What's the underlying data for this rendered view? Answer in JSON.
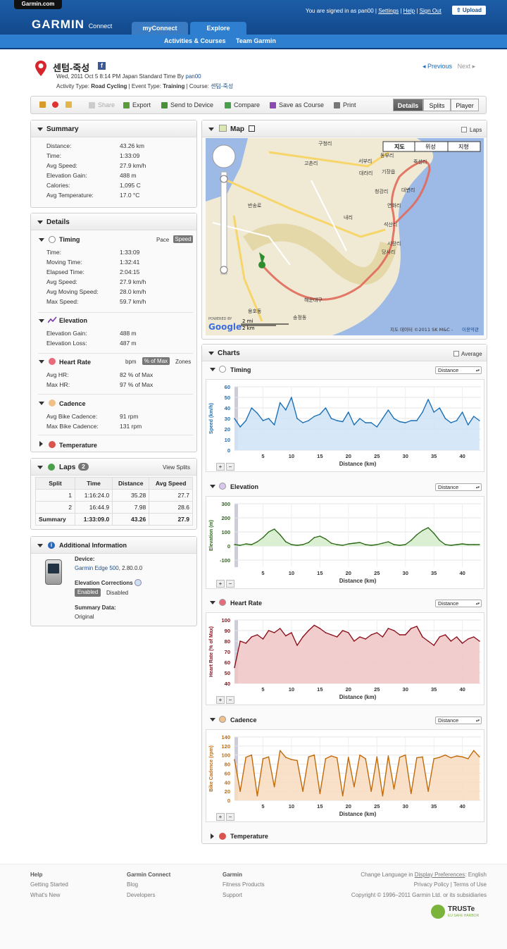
{
  "header": {
    "brand_tab": "Garmin.com",
    "logo": "GARMIN",
    "logo_sub": "Connect",
    "tabs": [
      "myConnect",
      "Explore"
    ],
    "subnav": [
      "Activities & Courses",
      "Team Garmin"
    ],
    "signed_in": "You are signed in as pan00 |",
    "settings": "Settings",
    "help": "Help",
    "signout": "Sign Out",
    "upload": "Upload"
  },
  "activity": {
    "title": "센텀-죽성",
    "date_line": "Wed, 2011 Oct 5 8:14 PM Japan Standard Time By",
    "user": "pan00",
    "type_label": "Activity Type:",
    "type": "Road Cycling",
    "event_label": "| Event Type:",
    "event": "Training",
    "course_label": "| Course:",
    "course": "센텀-죽성",
    "previous": "Previous",
    "next": "Next"
  },
  "toolbar": {
    "share": "Share",
    "export": "Export",
    "send": "Send to Device",
    "compare": "Compare",
    "save_course": "Save as Course",
    "print": "Print",
    "views": [
      "Details",
      "Splits",
      "Player"
    ]
  },
  "summary": {
    "title": "Summary",
    "rows": [
      [
        "Distance:",
        "43.26 km"
      ],
      [
        "Time:",
        "1:33:09"
      ],
      [
        "Avg Speed:",
        "27.9 km/h"
      ],
      [
        "Elevation Gain:",
        "488 m"
      ],
      [
        "Calories:",
        "1,095 C"
      ],
      [
        "Avg Temperature:",
        "17.0 °C"
      ]
    ]
  },
  "details": {
    "title": "Details",
    "timing": {
      "title": "Timing",
      "pace": "Pace",
      "speed": "Speed",
      "rows": [
        [
          "Time:",
          "1:33:09"
        ],
        [
          "Moving Time:",
          "1:32:41"
        ],
        [
          "Elapsed Time:",
          "2:04:15"
        ],
        [
          "Avg Speed:",
          "27.9 km/h"
        ],
        [
          "Avg Moving Speed:",
          "28.0 km/h"
        ],
        [
          "Max Speed:",
          "59.7 km/h"
        ]
      ]
    },
    "elevation": {
      "title": "Elevation",
      "rows": [
        [
          "Elevation Gain:",
          "488 m"
        ],
        [
          "Elevation Loss:",
          "487 m"
        ]
      ]
    },
    "heart": {
      "title": "Heart Rate",
      "bpm": "bpm",
      "pct": "% of Max",
      "zones": "Zones",
      "rows": [
        [
          "Avg HR:",
          "82 % of Max"
        ],
        [
          "Max HR:",
          "97 % of Max"
        ]
      ]
    },
    "cadence": {
      "title": "Cadence",
      "rows": [
        [
          "Avg Bike Cadence:",
          "91 rpm"
        ],
        [
          "Max Bike Cadence:",
          "131 rpm"
        ]
      ]
    },
    "temperature": {
      "title": "Temperature"
    }
  },
  "laps": {
    "title": "Laps",
    "count": "2",
    "view_splits": "View Splits",
    "headers": [
      "Split",
      "Time",
      "Distance",
      "Avg Speed"
    ],
    "rows": [
      [
        "1",
        "1:16:24.0",
        "35.28",
        "27.7"
      ],
      [
        "2",
        "16:44.9",
        "7.98",
        "28.6"
      ],
      [
        "Summary",
        "1:33:09.0",
        "43.26",
        "27.9"
      ]
    ]
  },
  "info": {
    "title": "Additional Information",
    "device_label": "Device:",
    "device": "Garmin Edge 500",
    "device_ver": ", 2.80.0.0",
    "elev_corr": "Elevation Corrections",
    "enabled": "Enabled",
    "disabled": "Disabled",
    "summary_data": "Summary Data:",
    "original": "Original"
  },
  "map": {
    "title": "Map",
    "laps": "Laps",
    "modes": [
      "지도",
      "위성",
      "지형"
    ],
    "scale_mi": "2 mi",
    "scale_km": "2 km",
    "copyright": "지도 데이터 ©2011 SK M&C -",
    "terms": "이용약관",
    "powered": "POWERED BY",
    "google": "Google",
    "places": [
      "구청리",
      "고촌리",
      "서부리",
      "동부리",
      "기장읍",
      "죽성리",
      "대라리",
      "청강리",
      "대변리",
      "연화리",
      "내리",
      "석산리",
      "시랑리",
      "당사리",
      "해운대구",
      "송정동",
      "용호동",
      "반송로"
    ]
  },
  "charts": {
    "title": "Charts",
    "average": "Average",
    "dropdown": "Distance",
    "xlabel": "Distance (km)",
    "temperature": "Temperature"
  },
  "chart_data": [
    {
      "type": "area",
      "title": "Timing",
      "ylabel": "Speed (km/h)",
      "xlabel": "Distance (km)",
      "ylim": [
        0,
        60
      ],
      "yticks": [
        0,
        10,
        20,
        30,
        40,
        50,
        60
      ],
      "xticks": [
        5,
        10,
        15,
        20,
        25,
        30,
        35,
        40
      ],
      "color": "#1b6fb5",
      "fill": "#cfe4f6",
      "x": [
        0,
        1,
        2,
        3,
        4,
        5,
        6,
        7,
        8,
        9,
        10,
        11,
        12,
        13,
        14,
        15,
        16,
        17,
        18,
        19,
        20,
        21,
        22,
        23,
        24,
        25,
        26,
        27,
        28,
        29,
        30,
        31,
        32,
        33,
        34,
        35,
        36,
        37,
        38,
        39,
        40,
        41,
        42,
        43
      ],
      "values": [
        30,
        22,
        28,
        40,
        35,
        28,
        30,
        24,
        45,
        38,
        50,
        30,
        26,
        28,
        32,
        34,
        40,
        30,
        28,
        27,
        36,
        24,
        30,
        26,
        26,
        22,
        30,
        38,
        30,
        27,
        26,
        28,
        28,
        36,
        48,
        36,
        40,
        30,
        26,
        28,
        36,
        24,
        32,
        28
      ]
    },
    {
      "type": "area",
      "title": "Elevation",
      "ylabel": "Elevation (m)",
      "xlabel": "Distance (km)",
      "ylim": [
        -150,
        300
      ],
      "yticks": [
        -100,
        0,
        100,
        200,
        300
      ],
      "xticks": [
        5,
        10,
        15,
        20,
        25,
        30,
        35,
        40
      ],
      "color": "#2d6a19",
      "fill": "#d5eccb",
      "x": [
        0,
        1,
        2,
        3,
        4,
        5,
        6,
        7,
        8,
        9,
        10,
        11,
        12,
        13,
        14,
        15,
        16,
        17,
        18,
        19,
        20,
        21,
        22,
        23,
        24,
        25,
        26,
        27,
        28,
        29,
        30,
        31,
        32,
        33,
        34,
        35,
        36,
        37,
        38,
        39,
        40,
        41,
        42,
        43
      ],
      "values": [
        10,
        5,
        15,
        10,
        30,
        60,
        100,
        120,
        80,
        30,
        10,
        5,
        10,
        25,
        60,
        70,
        50,
        20,
        10,
        5,
        15,
        20,
        25,
        10,
        5,
        10,
        20,
        30,
        10,
        5,
        10,
        40,
        80,
        110,
        130,
        90,
        40,
        10,
        5,
        10,
        15,
        10,
        10,
        10
      ]
    },
    {
      "type": "area",
      "title": "Heart Rate",
      "ylabel": "Heart Rate (% of Max)",
      "xlabel": "Distance (km)",
      "ylim": [
        40,
        100
      ],
      "yticks": [
        40,
        50,
        60,
        70,
        80,
        90,
        100
      ],
      "xticks": [
        5,
        10,
        15,
        20,
        25,
        30,
        35,
        40
      ],
      "color": "#8b0f1a",
      "fill": "#f0c4c6",
      "x": [
        0,
        1,
        2,
        3,
        4,
        5,
        6,
        7,
        8,
        9,
        10,
        11,
        12,
        13,
        14,
        15,
        16,
        17,
        18,
        19,
        20,
        21,
        22,
        23,
        24,
        25,
        26,
        27,
        28,
        29,
        30,
        31,
        32,
        33,
        34,
        35,
        36,
        37,
        38,
        39,
        40,
        41,
        42,
        43
      ],
      "values": [
        55,
        80,
        78,
        84,
        86,
        82,
        90,
        88,
        92,
        85,
        88,
        76,
        84,
        90,
        95,
        92,
        88,
        86,
        84,
        90,
        88,
        80,
        84,
        82,
        86,
        88,
        84,
        92,
        90,
        86,
        86,
        92,
        94,
        84,
        80,
        76,
        84,
        86,
        80,
        84,
        78,
        82,
        84,
        80
      ]
    },
    {
      "type": "area",
      "title": "Cadence",
      "ylabel": "Bike Cadence (rpm)",
      "xlabel": "Distance (km)",
      "ylim": [
        0,
        140
      ],
      "yticks": [
        0,
        20,
        40,
        60,
        80,
        100,
        120,
        140
      ],
      "xticks": [
        5,
        10,
        15,
        20,
        25,
        30,
        35,
        40
      ],
      "color": "#c06a0a",
      "fill": "#f8dcc0",
      "x": [
        0,
        1,
        2,
        3,
        4,
        5,
        6,
        7,
        8,
        9,
        10,
        11,
        12,
        13,
        14,
        15,
        16,
        17,
        18,
        19,
        20,
        21,
        22,
        23,
        24,
        25,
        26,
        27,
        28,
        29,
        30,
        31,
        32,
        33,
        34,
        35,
        36,
        37,
        38,
        39,
        40,
        41,
        42,
        43
      ],
      "values": [
        90,
        20,
        95,
        100,
        10,
        92,
        96,
        30,
        110,
        95,
        90,
        88,
        20,
        96,
        100,
        15,
        92,
        98,
        94,
        10,
        95,
        30,
        100,
        92,
        20,
        96,
        10,
        98,
        25,
        95,
        100,
        15,
        94,
        96,
        20,
        92,
        95,
        100,
        94,
        98,
        96,
        92,
        110,
        96
      ]
    }
  ],
  "footer": {
    "cols": [
      {
        "h": "Help",
        "links": [
          "Getting Started",
          "What's New"
        ]
      },
      {
        "h": "Garmin Connect",
        "links": [
          "Blog",
          "Developers"
        ]
      },
      {
        "h": "Garmin",
        "links": [
          "Fitness Products",
          "Support"
        ]
      }
    ],
    "lang_text": "Change Language in",
    "lang_link": "Display Preferences",
    "lang_val": ": English",
    "privacy": "Privacy Policy | Terms of Use",
    "copyright": "Copyright © 1996–2011 Garmin Ltd. or its subsidiaries",
    "truste": "TRUSTe",
    "truste_sub": "EU SAFE HARBOR"
  }
}
